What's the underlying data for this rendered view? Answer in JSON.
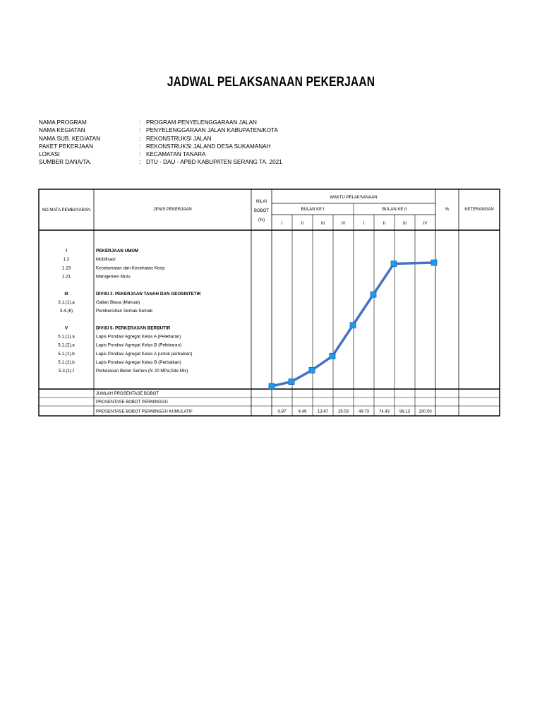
{
  "title": "JADWAL PELAKSANAAN PEKERJAAN",
  "project_info": [
    {
      "label": "NAMA PROGRAM",
      "sep": ":",
      "value": "PROGRAM PENYELENGGARAAN JALAN"
    },
    {
      "label": "NAMA KEGIATAN",
      "sep": ":",
      "value": "PENYELENGGARAAN JALAN KABUPATEN/KOTA"
    },
    {
      "label": "NAMA SUB. KEGIATAN",
      "sep": ":",
      "value": "REKONSTRUKSI JALAN"
    },
    {
      "label": "PAKET PEKERJAAN",
      "sep": ":",
      "value": "REKONSTRUKSI JALAND DESA SUKAMANAH"
    },
    {
      "label": "LOKASI",
      "sep": ":",
      "value": "KECAMATAN TANARA"
    },
    {
      "label": "SUMBER DANA/TA.",
      "sep": ":",
      "value": "DTU - DAU - APBD KABUPATEN SERANG TA. 2021"
    }
  ],
  "table": {
    "headers": {
      "no": "NO MATA PEMBAYARAN",
      "jenis": "JENIS PEKERJAAN",
      "nilai_1": "NILAI",
      "nilai_2": "BOBOT",
      "nilai_3": "(%)",
      "waktu": "WAKTU PELAKSANAAN",
      "bulan_1": "BULAN KE I",
      "bulan_2": "BULAN KE II",
      "persen": "%",
      "keterangan": "KETERANGAN"
    },
    "weeks": [
      "I",
      "II",
      "III",
      "IV",
      "I",
      "II",
      "III",
      "IV"
    ],
    "rows": [
      {
        "no": "I",
        "jenis": "PEKERJAAN UMUM",
        "bold": true
      },
      {
        "no": "1.2",
        "jenis": "Mobilisasi"
      },
      {
        "no": "1.19",
        "jenis": "Keselamatan dan Kesehatan Kerja"
      },
      {
        "no": "1.21",
        "jenis": "Manajemen Mutu"
      },
      {
        "no": "",
        "jenis": ""
      },
      {
        "no": "III",
        "jenis": "DIVISI 3.  PEKERJAAN TANAH DAN GEOSINTETIK",
        "bold": true
      },
      {
        "no": "3.1.(1).a",
        "jenis": "Galian Biasa (Manual)"
      },
      {
        "no": "3.4.(6)",
        "jenis": "Pembersihan Semak-Semak"
      },
      {
        "no": "",
        "jenis": ""
      },
      {
        "no": "V",
        "jenis": "DIVISI  5.  PERKERASAN  BERBUTIR",
        "bold": true
      },
      {
        "no": "5.1.(1).a",
        "jenis": "Lapis Pondasi Agregat Kelas A (Pelebaran)"
      },
      {
        "no": "5.1.(2).a",
        "jenis": "Lapis Pondasi Agregat Kelas B (Pelebaran)"
      },
      {
        "no": "5.1.(1).b",
        "jenis": "Lapis Pondasi Agregat Kelas A (untuk perbaikan)"
      },
      {
        "no": "5.1.(2).b",
        "jenis": "Lapis Pondasi Agregat Kelas B (Perbaikan)"
      },
      {
        "no": "5.3.(1).f",
        "jenis": "Perkerasan Beton Semen (fc 20 MPa;Site Mix)"
      }
    ],
    "footer": {
      "jumlah": "JUMLAH PROSENTASE BOBOT",
      "perminggu": "PROSENTASE BOBOT PERMINGGU",
      "kumulatif": "PROSENTASE BOBOT PERMINGGU KUMULATIF"
    },
    "kumulatif_values": [
      "0.87",
      "4.49",
      "13.67",
      "25.03",
      "49.73",
      "74.43",
      "99.13",
      "100.00"
    ]
  },
  "chart_data": {
    "type": "line",
    "x": [
      "I",
      "II",
      "III",
      "IV",
      "I",
      "II",
      "III",
      "IV"
    ],
    "series": [
      {
        "values": [
          0.87,
          4.49,
          13.67,
          25.03,
          49.73,
          74.43,
          99.13,
          100.0
        ]
      }
    ],
    "ylim": [
      0,
      100
    ],
    "line_color": "#4472C4",
    "marker_color": "#1E9CE8"
  }
}
